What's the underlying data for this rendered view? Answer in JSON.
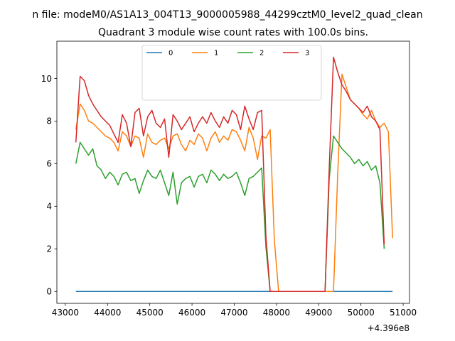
{
  "chart_data": {
    "type": "line",
    "suptitle": "n file: modeM0/AS1A13_004T13_9000005988_44299cztM0_level2_quad_clean",
    "title": "Quadrant 3 module wise count rates with 100.0s bins.",
    "xlabel": "",
    "ylabel": "",
    "x_offset_label": "+4.396e8",
    "xlim": [
      42800,
      51150
    ],
    "ylim": [
      -0.56,
      11.75
    ],
    "x_ticks": [
      43000,
      44000,
      45000,
      46000,
      47000,
      48000,
      49000,
      50000,
      51000
    ],
    "y_ticks": [
      0,
      2,
      4,
      6,
      8,
      10
    ],
    "grid": false,
    "legend_position": "top-center",
    "legend_columns": 4,
    "series": [
      {
        "name": "0",
        "color": "#1f77b4",
        "dash": "solid",
        "values": [
          0,
          0,
          0,
          0,
          0,
          0,
          0,
          0,
          0,
          0,
          0,
          0,
          0,
          0,
          0,
          0,
          0,
          0,
          0,
          0,
          0,
          0,
          0,
          0,
          0,
          0,
          0,
          0,
          0,
          0,
          0,
          0,
          0,
          0,
          0,
          0,
          0,
          0,
          0,
          0,
          0,
          0,
          0,
          0,
          0,
          0,
          0,
          0,
          0,
          0,
          0,
          0,
          0,
          0,
          0,
          0,
          0,
          0,
          0,
          0,
          0,
          0,
          0,
          0,
          0,
          0,
          0,
          0,
          0,
          0,
          0,
          0,
          0,
          0,
          0,
          0
        ]
      },
      {
        "name": "1",
        "color": "#ff7f0e",
        "dash": "solid",
        "values": [
          7.6,
          8.8,
          8.5,
          8.0,
          7.9,
          7.7,
          7.5,
          7.3,
          7.2,
          7.0,
          6.6,
          7.5,
          7.3,
          6.8,
          7.3,
          7.2,
          6.3,
          7.4,
          7.0,
          6.9,
          7.1,
          7.2,
          6.7,
          7.3,
          7.4,
          6.9,
          6.6,
          7.1,
          6.9,
          7.4,
          7.2,
          6.6,
          7.2,
          7.5,
          7.0,
          7.3,
          7.1,
          7.6,
          7.5,
          7.1,
          6.6,
          7.7,
          7.2,
          6.2,
          7.3,
          7.2,
          7.6,
          2.4,
          0,
          0,
          0,
          0,
          0,
          0,
          0,
          0,
          0,
          0,
          0,
          0,
          0,
          0,
          5.5,
          10.2,
          9.6,
          9.0,
          8.8,
          8.6,
          8.3,
          8.1,
          8.5,
          8.0,
          7.7,
          7.9,
          7.5,
          2.5
        ]
      },
      {
        "name": "2",
        "color": "#2ca02c",
        "dash": "solid",
        "values": [
          6.0,
          7.0,
          6.7,
          6.4,
          6.7,
          5.9,
          5.7,
          5.3,
          5.6,
          5.4,
          5.0,
          5.5,
          5.6,
          5.2,
          5.3,
          4.6,
          5.2,
          5.7,
          5.4,
          5.3,
          5.7,
          5.1,
          4.5,
          5.6,
          4.1,
          5.1,
          5.3,
          5.4,
          4.9,
          5.4,
          5.5,
          5.1,
          5.7,
          5.5,
          5.2,
          5.5,
          5.3,
          5.4,
          5.6,
          5.1,
          4.5,
          5.3,
          5.4,
          5.6,
          5.8,
          2.1,
          0,
          0,
          0,
          0,
          0,
          0,
          0,
          0,
          0,
          0,
          0,
          0,
          0,
          0,
          5.3,
          7.3,
          7.0,
          6.7,
          6.5,
          6.3,
          6.0,
          6.2,
          5.9,
          6.1,
          5.7,
          5.9,
          5.1,
          2.0
        ]
      },
      {
        "name": "3",
        "color": "#d62728",
        "dash": "solid",
        "values": [
          7.0,
          10.1,
          9.9,
          9.2,
          8.8,
          8.5,
          8.2,
          8.0,
          7.8,
          7.4,
          7.0,
          8.3,
          7.9,
          6.8,
          8.4,
          8.6,
          7.3,
          8.2,
          8.5,
          7.9,
          7.7,
          8.1,
          6.3,
          8.3,
          8.0,
          7.6,
          7.9,
          8.2,
          7.5,
          7.9,
          8.2,
          7.9,
          8.4,
          8.0,
          7.7,
          8.2,
          7.9,
          8.5,
          8.3,
          7.6,
          8.7,
          8.1,
          7.6,
          8.4,
          8.5,
          2.6,
          0,
          0,
          0,
          0,
          0,
          0,
          0,
          0,
          0,
          0,
          0,
          0,
          0,
          0,
          5.8,
          11.0,
          10.3,
          9.7,
          9.4,
          9.0,
          8.8,
          8.6,
          8.4,
          8.7,
          8.2,
          8.0,
          7.6,
          2.2
        ]
      }
    ]
  }
}
